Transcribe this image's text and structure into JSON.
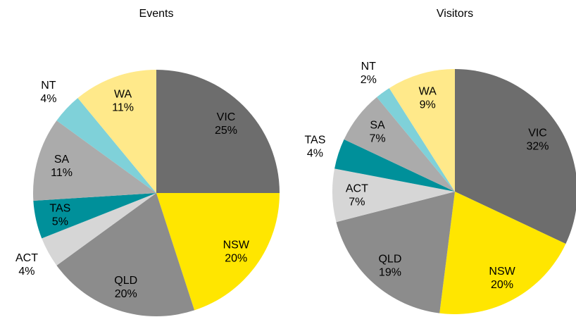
{
  "chart_data": [
    {
      "type": "pie",
      "title": "Events",
      "categories": [
        "VIC",
        "NSW",
        "QLD",
        "ACT",
        "TAS",
        "SA",
        "NT",
        "WA"
      ],
      "values": [
        25,
        20,
        20,
        4,
        5,
        11,
        4,
        11
      ],
      "value_labels": [
        "25%",
        "20%",
        "20%",
        "4%",
        "5%",
        "11%",
        "4%",
        "11%"
      ],
      "colors": [
        "#6d6d6d",
        "#ffe600",
        "#8c8c8c",
        "#d6d6d6",
        "#00909a",
        "#ababab",
        "#7fd1d9",
        "#ffe98a"
      ]
    },
    {
      "type": "pie",
      "title": "Visitors",
      "categories": [
        "VIC",
        "NSW",
        "QLD",
        "ACT",
        "TAS",
        "SA",
        "NT",
        "WA"
      ],
      "values": [
        32,
        20,
        19,
        7,
        4,
        7,
        2,
        9
      ],
      "value_labels": [
        "32%",
        "20%",
        "19%",
        "7%",
        "4%",
        "7%",
        "2%",
        "9%"
      ],
      "colors": [
        "#6d6d6d",
        "#ffe600",
        "#8c8c8c",
        "#d6d6d6",
        "#00909a",
        "#ababab",
        "#7fd1d9",
        "#ffe98a"
      ]
    }
  ]
}
